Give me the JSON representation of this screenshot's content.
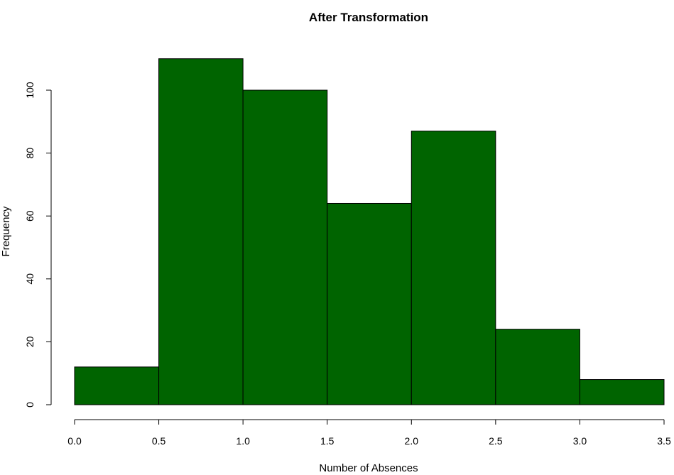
{
  "chart_data": {
    "type": "bar",
    "title": "After Transformation",
    "xlabel": "Number of Absences",
    "ylabel": "Frequency",
    "bins": [
      {
        "start": 0.0,
        "end": 0.5,
        "count": 12
      },
      {
        "start": 0.5,
        "end": 1.0,
        "count": 110
      },
      {
        "start": 1.0,
        "end": 1.5,
        "count": 100
      },
      {
        "start": 1.5,
        "end": 2.0,
        "count": 64
      },
      {
        "start": 2.0,
        "end": 2.5,
        "count": 87
      },
      {
        "start": 2.5,
        "end": 3.0,
        "count": 24
      },
      {
        "start": 3.0,
        "end": 3.5,
        "count": 8
      }
    ],
    "xlim": [
      0,
      3.5
    ],
    "ylim": [
      0,
      110
    ],
    "xticks": [
      "0.0",
      "0.5",
      "1.0",
      "1.5",
      "2.0",
      "2.5",
      "3.0",
      "3.5"
    ],
    "yticks": [
      "0",
      "20",
      "40",
      "60",
      "80",
      "100"
    ],
    "bar_color": "#006400",
    "grid": false
  }
}
